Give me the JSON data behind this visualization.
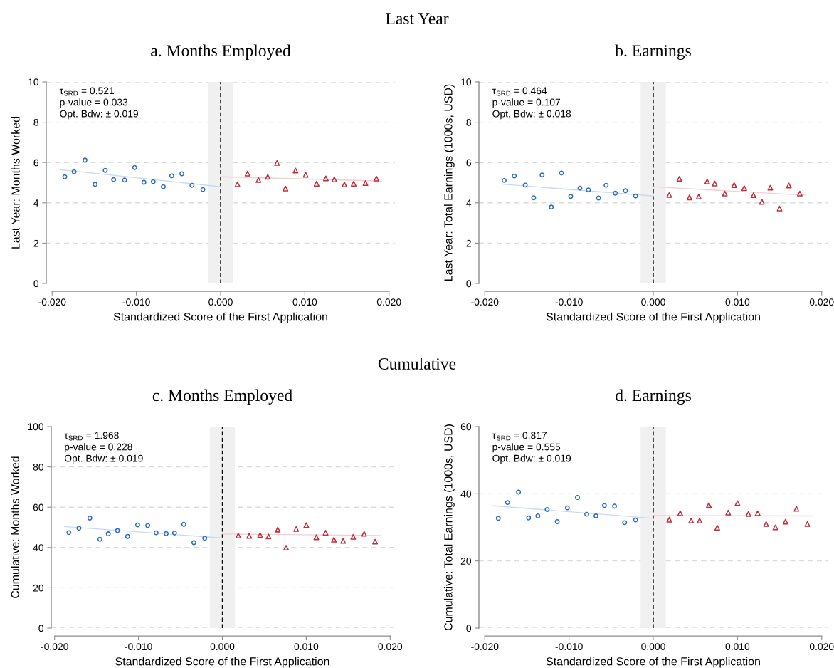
{
  "chart_data": [
    {
      "type": "other",
      "title": "Last Year"
    },
    {
      "type": "scatter",
      "title": "a. Months Employed",
      "xlabel": "Standardized Score of the First Application",
      "ylabel": "Last Year: Months Worked",
      "xlim": [
        -0.0207,
        0.0207
      ],
      "xticks": [
        {
          "value": -0.02,
          "label": "-0.020"
        },
        {
          "value": -0.01,
          "label": "-0.010"
        },
        {
          "value": 0,
          "label": "0.000"
        },
        {
          "value": 0.01,
          "label": "0.010"
        },
        {
          "value": 0.02,
          "label": "0.020"
        }
      ],
      "ylim": [
        0,
        10
      ],
      "yticks": [
        0,
        2,
        4,
        6,
        8,
        10
      ],
      "grid": "y",
      "annotations": [
        "τ$_{SRD}$ = 0.521",
        "p-value = 0.033",
        "Opt. Bdw: ± 0.019"
      ],
      "ref_lines": [
        {
          "axis": "x",
          "value": 0,
          "color": "#000000",
          "line_style": "dashed"
        }
      ],
      "bands": [
        {
          "axis": "x",
          "from": -0.0015,
          "to": 0.0015,
          "color": "#f0f0f0"
        }
      ],
      "series": [
        {
          "color": "#2b6cc4",
          "marker": "circle",
          "x": [
            -0.0185,
            -0.0174,
            -0.0161,
            -0.0149,
            -0.0137,
            -0.0127,
            -0.0114,
            -0.0102,
            -0.0091,
            -0.008,
            -0.0068,
            -0.0058,
            -0.0046,
            -0.0034,
            -0.0021
          ],
          "values": [
            5.29,
            5.54,
            6.12,
            4.92,
            5.61,
            5.15,
            5.13,
            5.75,
            5.02,
            5.05,
            4.8,
            5.34,
            5.44,
            4.87,
            4.66
          ]
        },
        {
          "color": "#c0303a",
          "marker": "triangle",
          "x": [
            0.002,
            0.0032,
            0.0045,
            0.0056,
            0.0067,
            0.0077,
            0.0089,
            0.0101,
            0.0114,
            0.0125,
            0.0135,
            0.0147,
            0.0158,
            0.0172,
            0.0185
          ],
          "values": [
            4.92,
            5.45,
            5.13,
            5.29,
            5.98,
            4.71,
            5.6,
            5.39,
            4.95,
            5.21,
            5.16,
            4.91,
            4.95,
            4.98,
            5.2
          ]
        },
        {
          "type": "line",
          "color": "#c8daf2",
          "marker": "none",
          "x": [
            -0.0191,
            0
          ],
          "values": [
            5.65,
            4.8
          ]
        },
        {
          "type": "line",
          "color": "#f5cdd0",
          "marker": "none",
          "x": [
            0,
            0.0191
          ],
          "values": [
            5.29,
            5.08
          ]
        }
      ]
    },
    {
      "type": "scatter",
      "title": "b. Earnings",
      "xlabel": "Standardized Score of the First Application",
      "ylabel": "Last Year: Total Earnings (1000s, USD)",
      "xlim": [
        -0.0207,
        0.0207
      ],
      "xticks": [
        {
          "value": -0.02,
          "label": "-0.020"
        },
        {
          "value": -0.01,
          "label": "-0.010"
        },
        {
          "value": 0,
          "label": "0.000"
        },
        {
          "value": 0.01,
          "label": "0.010"
        },
        {
          "value": 0.02,
          "label": "0.020"
        }
      ],
      "ylim": [
        0,
        10
      ],
      "yticks": [
        0,
        2,
        4,
        6,
        8,
        10
      ],
      "grid": "y",
      "annotations": [
        "τ$_{SRD}$ = 0.464",
        "p-value = 0.107",
        "Opt. Bdw: ± 0.018"
      ],
      "ref_lines": [
        {
          "axis": "x",
          "value": 0,
          "color": "#000000",
          "line_style": "dashed"
        }
      ],
      "bands": [
        {
          "axis": "x",
          "from": -0.0015,
          "to": 0.0015,
          "color": "#f0f0f0"
        }
      ],
      "series": [
        {
          "color": "#2b6cc4",
          "marker": "circle",
          "x": [
            -0.0177,
            -0.0165,
            -0.0152,
            -0.0142,
            -0.0132,
            -0.0121,
            -0.0109,
            -0.0098,
            -0.0087,
            -0.0077,
            -0.0065,
            -0.0056,
            -0.0045,
            -0.0033,
            -0.0021
          ],
          "values": [
            5.11,
            5.33,
            4.88,
            4.25,
            5.38,
            3.79,
            5.48,
            4.32,
            4.73,
            4.64,
            4.24,
            4.87,
            4.48,
            4.6,
            4.34
          ]
        },
        {
          "color": "#c0303a",
          "marker": "triangle",
          "x": [
            0.0019,
            0.0031,
            0.0043,
            0.0054,
            0.0064,
            0.0073,
            0.0085,
            0.0096,
            0.0108,
            0.0119,
            0.0129,
            0.0139,
            0.015,
            0.0161,
            0.0174
          ],
          "values": [
            4.39,
            5.19,
            4.27,
            4.31,
            5.06,
            4.96,
            4.46,
            4.88,
            4.73,
            4.38,
            4.05,
            4.75,
            3.72,
            4.86,
            4.46
          ]
        },
        {
          "type": "line",
          "color": "#c8daf2",
          "marker": "none",
          "x": [
            -0.0181,
            0
          ],
          "values": [
            4.93,
            4.34
          ]
        },
        {
          "type": "line",
          "color": "#f5cdd0",
          "marker": "none",
          "x": [
            0,
            0.0181
          ],
          "values": [
            4.8,
            4.38
          ]
        }
      ]
    },
    {
      "type": "other",
      "title": "Cumulative"
    },
    {
      "type": "scatter",
      "title": "c. Months Employed",
      "xlabel": "Standardized Score of the First Application",
      "ylabel": "Cumulative: Months Worked",
      "xlim": [
        -0.0204,
        0.0204
      ],
      "xticks": [
        {
          "value": -0.02,
          "label": "-0.020"
        },
        {
          "value": -0.01,
          "label": "-0.010"
        },
        {
          "value": 0,
          "label": "0.000"
        },
        {
          "value": 0.01,
          "label": "0.010"
        },
        {
          "value": 0.02,
          "label": "0.020"
        }
      ],
      "ylim": [
        0,
        100
      ],
      "yticks": [
        0,
        20,
        40,
        60,
        80,
        100
      ],
      "grid": "y",
      "annotations": [
        "τ$_{SRD}$ = 1.968",
        "p-value = 0.228",
        "Opt. Bdw: ± 0.019"
      ],
      "ref_lines": [
        {
          "axis": "x",
          "value": 0,
          "color": "#000000",
          "line_style": "dashed"
        }
      ],
      "bands": [
        {
          "axis": "x",
          "from": -0.0015,
          "to": 0.0015,
          "color": "#f0f0f0"
        }
      ],
      "series": [
        {
          "color": "#2b6cc4",
          "marker": "circle",
          "x": [
            -0.0183,
            -0.0171,
            -0.0158,
            -0.0146,
            -0.0136,
            -0.0125,
            -0.0113,
            -0.0101,
            -0.0089,
            -0.0079,
            -0.0067,
            -0.0057,
            -0.0046,
            -0.0034,
            -0.0021
          ],
          "values": [
            47.4,
            49.6,
            54.6,
            44.1,
            46.8,
            48.4,
            45.5,
            51.2,
            50.9,
            47.3,
            46.9,
            47.2,
            51.5,
            42.4,
            44.6
          ]
        },
        {
          "color": "#c0303a",
          "marker": "triangle",
          "x": [
            0.0019,
            0.0032,
            0.0045,
            0.0055,
            0.0066,
            0.0076,
            0.0088,
            0.01,
            0.0112,
            0.0123,
            0.0133,
            0.0144,
            0.0156,
            0.0169,
            0.0182
          ],
          "values": [
            45.9,
            45.8,
            46.2,
            45.5,
            48.9,
            39.9,
            49.2,
            51.1,
            45.1,
            47.3,
            43.9,
            43.3,
            45.3,
            46.8,
            42.9
          ]
        },
        {
          "type": "line",
          "color": "#c8daf2",
          "marker": "none",
          "x": [
            -0.0188,
            0
          ],
          "values": [
            50.4,
            44.7
          ]
        },
        {
          "type": "line",
          "color": "#f5cdd0",
          "marker": "none",
          "x": [
            0,
            0.0188
          ],
          "values": [
            46.7,
            46.0
          ]
        }
      ]
    },
    {
      "type": "scatter",
      "title": "d. Earnings",
      "xlabel": "Standardized Score of the First Application",
      "ylabel": "Cumulative: Total Earnings (1000s, USD)",
      "xlim": [
        -0.0207,
        0.0207
      ],
      "xticks": [
        {
          "value": -0.02,
          "label": "-0.020"
        },
        {
          "value": -0.01,
          "label": "-0.010"
        },
        {
          "value": 0,
          "label": "0.000"
        },
        {
          "value": 0.01,
          "label": "0.010"
        },
        {
          "value": 0.02,
          "label": "0.020"
        }
      ],
      "ylim": [
        0,
        60
      ],
      "yticks": [
        0,
        20,
        40,
        60
      ],
      "grid": "y",
      "annotations": [
        "τ$_{SRD}$ = 0.817",
        "p-value = 0.555",
        "Opt. Bdw: ± 0.019"
      ],
      "ref_lines": [
        {
          "axis": "x",
          "value": 0,
          "color": "#000000",
          "line_style": "dashed"
        }
      ],
      "bands": [
        {
          "axis": "x",
          "from": -0.0015,
          "to": 0.0015,
          "color": "#f0f0f0"
        }
      ],
      "series": [
        {
          "color": "#2b6cc4",
          "marker": "circle",
          "x": [
            -0.0184,
            -0.0173,
            -0.016,
            -0.0148,
            -0.0137,
            -0.0126,
            -0.0114,
            -0.0102,
            -0.009,
            -0.0079,
            -0.0068,
            -0.0058,
            -0.0046,
            -0.0034,
            -0.0021
          ],
          "values": [
            32.7,
            37.4,
            40.5,
            32.8,
            33.4,
            35.3,
            31.7,
            35.8,
            38.9,
            33.9,
            33.4,
            36.5,
            36.3,
            31.4,
            32.2
          ]
        },
        {
          "color": "#c0303a",
          "marker": "triangle",
          "x": [
            0.0019,
            0.0032,
            0.0045,
            0.0055,
            0.0066,
            0.0076,
            0.0089,
            0.01,
            0.0113,
            0.0124,
            0.0134,
            0.0145,
            0.0157,
            0.017,
            0.0183
          ],
          "values": [
            32.3,
            34.2,
            32.0,
            32.0,
            36.6,
            29.9,
            34.4,
            37.2,
            34.0,
            34.2,
            31.0,
            30.0,
            31.7,
            35.5,
            31.0
          ]
        },
        {
          "type": "line",
          "color": "#c8daf2",
          "marker": "none",
          "x": [
            -0.019,
            0
          ],
          "values": [
            36.4,
            32.7
          ]
        },
        {
          "type": "line",
          "color": "#f5cdd0",
          "marker": "none",
          "x": [
            0,
            0.019
          ],
          "values": [
            33.5,
            33.4
          ]
        }
      ]
    }
  ]
}
